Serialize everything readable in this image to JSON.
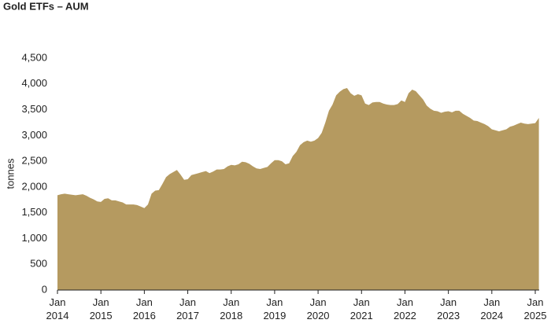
{
  "chart_data": {
    "type": "area",
    "title": "Gold ETFs – AUM",
    "y_label": "tonnes",
    "color": "#b59a60",
    "x": [
      "2014-01",
      "2014-02",
      "2014-03",
      "2014-04",
      "2014-05",
      "2014-06",
      "2014-07",
      "2014-08",
      "2014-09",
      "2014-10",
      "2014-11",
      "2014-12",
      "2015-01",
      "2015-02",
      "2015-03",
      "2015-04",
      "2015-05",
      "2015-06",
      "2015-07",
      "2015-08",
      "2015-09",
      "2015-10",
      "2015-11",
      "2015-12",
      "2016-01",
      "2016-02",
      "2016-03",
      "2016-04",
      "2016-05",
      "2016-06",
      "2016-07",
      "2016-08",
      "2016-09",
      "2016-10",
      "2016-11",
      "2016-12",
      "2017-01",
      "2017-02",
      "2017-03",
      "2017-04",
      "2017-05",
      "2017-06",
      "2017-07",
      "2017-08",
      "2017-09",
      "2017-10",
      "2017-11",
      "2017-12",
      "2018-01",
      "2018-02",
      "2018-03",
      "2018-04",
      "2018-05",
      "2018-06",
      "2018-07",
      "2018-08",
      "2018-09",
      "2018-10",
      "2018-11",
      "2018-12",
      "2019-01",
      "2019-02",
      "2019-03",
      "2019-04",
      "2019-05",
      "2019-06",
      "2019-07",
      "2019-08",
      "2019-09",
      "2019-10",
      "2019-11",
      "2019-12",
      "2020-01",
      "2020-02",
      "2020-03",
      "2020-04",
      "2020-05",
      "2020-06",
      "2020-07",
      "2020-08",
      "2020-09",
      "2020-10",
      "2020-11",
      "2020-12",
      "2021-01",
      "2021-02",
      "2021-03",
      "2021-04",
      "2021-05",
      "2021-06",
      "2021-07",
      "2021-08",
      "2021-09",
      "2021-10",
      "2021-11",
      "2021-12",
      "2022-01",
      "2022-02",
      "2022-03",
      "2022-04",
      "2022-05",
      "2022-06",
      "2022-07",
      "2022-08",
      "2022-09",
      "2022-10",
      "2022-11",
      "2022-12",
      "2023-01",
      "2023-02",
      "2023-03",
      "2023-04",
      "2023-05",
      "2023-06",
      "2023-07",
      "2023-08",
      "2023-09",
      "2023-10",
      "2023-11",
      "2023-12",
      "2024-01",
      "2024-02",
      "2024-03",
      "2024-04",
      "2024-05",
      "2024-06",
      "2024-07",
      "2024-08",
      "2024-09",
      "2024-10",
      "2024-11",
      "2024-12",
      "2025-01",
      "2025-02"
    ],
    "values": [
      1840,
      1860,
      1870,
      1860,
      1850,
      1840,
      1850,
      1860,
      1830,
      1790,
      1760,
      1720,
      1710,
      1770,
      1780,
      1740,
      1740,
      1720,
      1700,
      1660,
      1660,
      1660,
      1650,
      1620,
      1590,
      1660,
      1870,
      1930,
      1940,
      2060,
      2190,
      2250,
      2290,
      2330,
      2240,
      2140,
      2150,
      2230,
      2250,
      2270,
      2290,
      2310,
      2270,
      2300,
      2340,
      2340,
      2350,
      2400,
      2430,
      2420,
      2440,
      2490,
      2480,
      2450,
      2400,
      2360,
      2350,
      2370,
      2390,
      2460,
      2520,
      2520,
      2500,
      2440,
      2460,
      2600,
      2680,
      2810,
      2870,
      2900,
      2880,
      2900,
      2950,
      3050,
      3250,
      3480,
      3600,
      3780,
      3850,
      3900,
      3920,
      3820,
      3770,
      3800,
      3780,
      3620,
      3590,
      3640,
      3650,
      3650,
      3620,
      3600,
      3590,
      3590,
      3610,
      3680,
      3650,
      3820,
      3890,
      3860,
      3780,
      3700,
      3580,
      3520,
      3480,
      3470,
      3440,
      3460,
      3470,
      3450,
      3480,
      3480,
      3420,
      3380,
      3340,
      3290,
      3280,
      3250,
      3220,
      3180,
      3120,
      3100,
      3080,
      3100,
      3120,
      3170,
      3190,
      3220,
      3250,
      3230,
      3220,
      3230,
      3240,
      3340
    ],
    "ylim": [
      0,
      4500
    ],
    "yticks": [
      0,
      500,
      {
        "value": 1000,
        "label": "1,000"
      },
      {
        "value": 1500,
        "label": "1,500"
      },
      {
        "value": 2000,
        "label": "2,000"
      },
      {
        "value": 2500,
        "label": "2,500"
      },
      {
        "value": 3000,
        "label": "3,000"
      },
      {
        "value": 3500,
        "label": "3,500"
      },
      {
        "value": 4000,
        "label": "4,000"
      },
      {
        "value": 4500,
        "label": "4,500"
      }
    ],
    "xticks": [
      {
        "value": "2014-01",
        "label": "Jan 2014"
      },
      {
        "value": "2015-01",
        "label": "Jan 2015"
      },
      {
        "value": "2016-01",
        "label": "Jan 2016"
      },
      {
        "value": "2017-01",
        "label": "Jan 2017"
      },
      {
        "value": "2018-01",
        "label": "Jan 2018"
      },
      {
        "value": "2019-01",
        "label": "Jan 2019"
      },
      {
        "value": "2020-01",
        "label": "Jan 2020"
      },
      {
        "value": "2021-01",
        "label": "Jan 2021"
      },
      {
        "value": "2022-01",
        "label": "Jan 2022"
      },
      {
        "value": "2023-01",
        "label": "Jan 2023"
      },
      {
        "value": "2024-01",
        "label": "Jan 2024"
      },
      {
        "value": "2025-01",
        "label": "Jan 2025"
      }
    ],
    "grid": false
  }
}
